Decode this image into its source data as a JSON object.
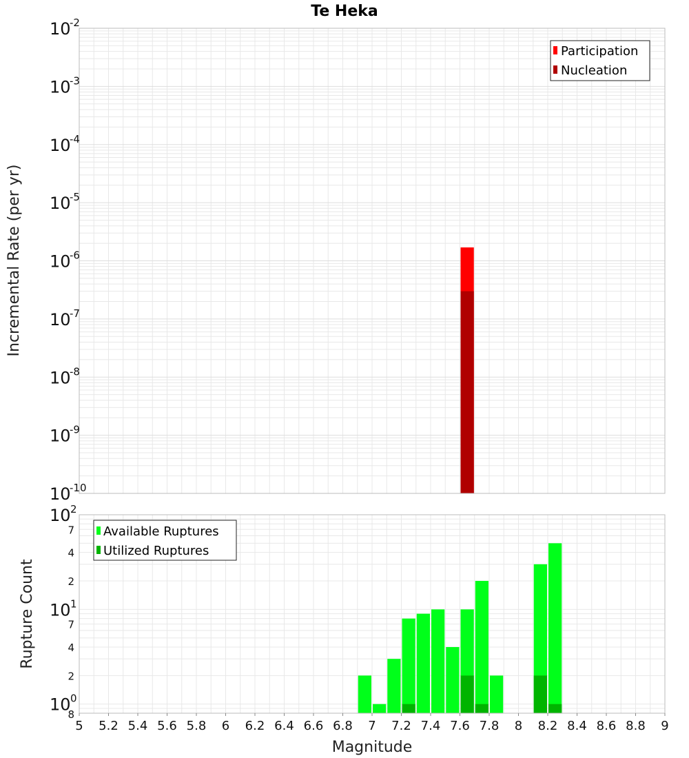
{
  "figure": {
    "title": "Te Heka",
    "xlabel": "Magnitude"
  },
  "colors": {
    "participation": "#ff0000",
    "nucleation": "#b00000",
    "available": "#00ff1a",
    "utilized": "#00b400",
    "grid": "#e8e8e8",
    "frame": "#bbbbbb"
  },
  "chart_data": [
    {
      "type": "bar",
      "ylabel": "Incremental Rate (per yr)",
      "yscale": "log",
      "ylim": [
        1e-10,
        0.01
      ],
      "xlim": [
        5,
        9
      ],
      "legend": "top-right",
      "series": [
        {
          "name": "Participation",
          "x": [
            7.65
          ],
          "values": [
            1.7e-06
          ]
        },
        {
          "name": "Nucleation",
          "x": [
            7.65
          ],
          "values": [
            3e-07
          ]
        }
      ]
    },
    {
      "type": "bar",
      "ylabel": "Rupture Count",
      "yscale": "log",
      "ylim": [
        0.8,
        100
      ],
      "xlim": [
        5,
        9
      ],
      "legend": "top-left",
      "series": [
        {
          "name": "Available Ruptures",
          "x": [
            6.95,
            7.05,
            7.15,
            7.25,
            7.35,
            7.45,
            7.55,
            7.65,
            7.75,
            7.85,
            8.15,
            8.25
          ],
          "values": [
            2,
            1,
            3,
            8,
            9,
            10,
            4,
            10,
            20,
            2,
            30,
            50
          ]
        },
        {
          "name": "Utilized Ruptures",
          "x": [
            7.25,
            7.65,
            7.75,
            8.15,
            8.25
          ],
          "values": [
            1,
            2,
            1,
            2,
            1
          ]
        }
      ]
    }
  ],
  "axis_ticks": {
    "x": [
      "5",
      "5.2",
      "5.4",
      "5.6",
      "5.8",
      "6",
      "6.2",
      "6.4",
      "6.6",
      "6.8",
      "7",
      "7.2",
      "7.4",
      "7.6",
      "7.8",
      "8",
      "8.2",
      "8.4",
      "8.6",
      "8.8",
      "9"
    ],
    "top_y": [
      {
        "base": "10",
        "exp": "-2"
      },
      {
        "base": "10",
        "exp": "-3"
      },
      {
        "base": "10",
        "exp": "-4"
      },
      {
        "base": "10",
        "exp": "-5"
      },
      {
        "base": "10",
        "exp": "-6"
      },
      {
        "base": "10",
        "exp": "-7"
      },
      {
        "base": "10",
        "exp": "-8"
      },
      {
        "base": "10",
        "exp": "-9"
      },
      {
        "base": "10",
        "exp": "-10"
      }
    ],
    "bottom_y_major": [
      {
        "base": "10",
        "exp": "2"
      },
      {
        "base": "10",
        "exp": "1"
      },
      {
        "base": "10",
        "exp": "0"
      }
    ],
    "bottom_y_minor": [
      "7",
      "4",
      "2",
      "7",
      "4",
      "2",
      "8"
    ]
  }
}
